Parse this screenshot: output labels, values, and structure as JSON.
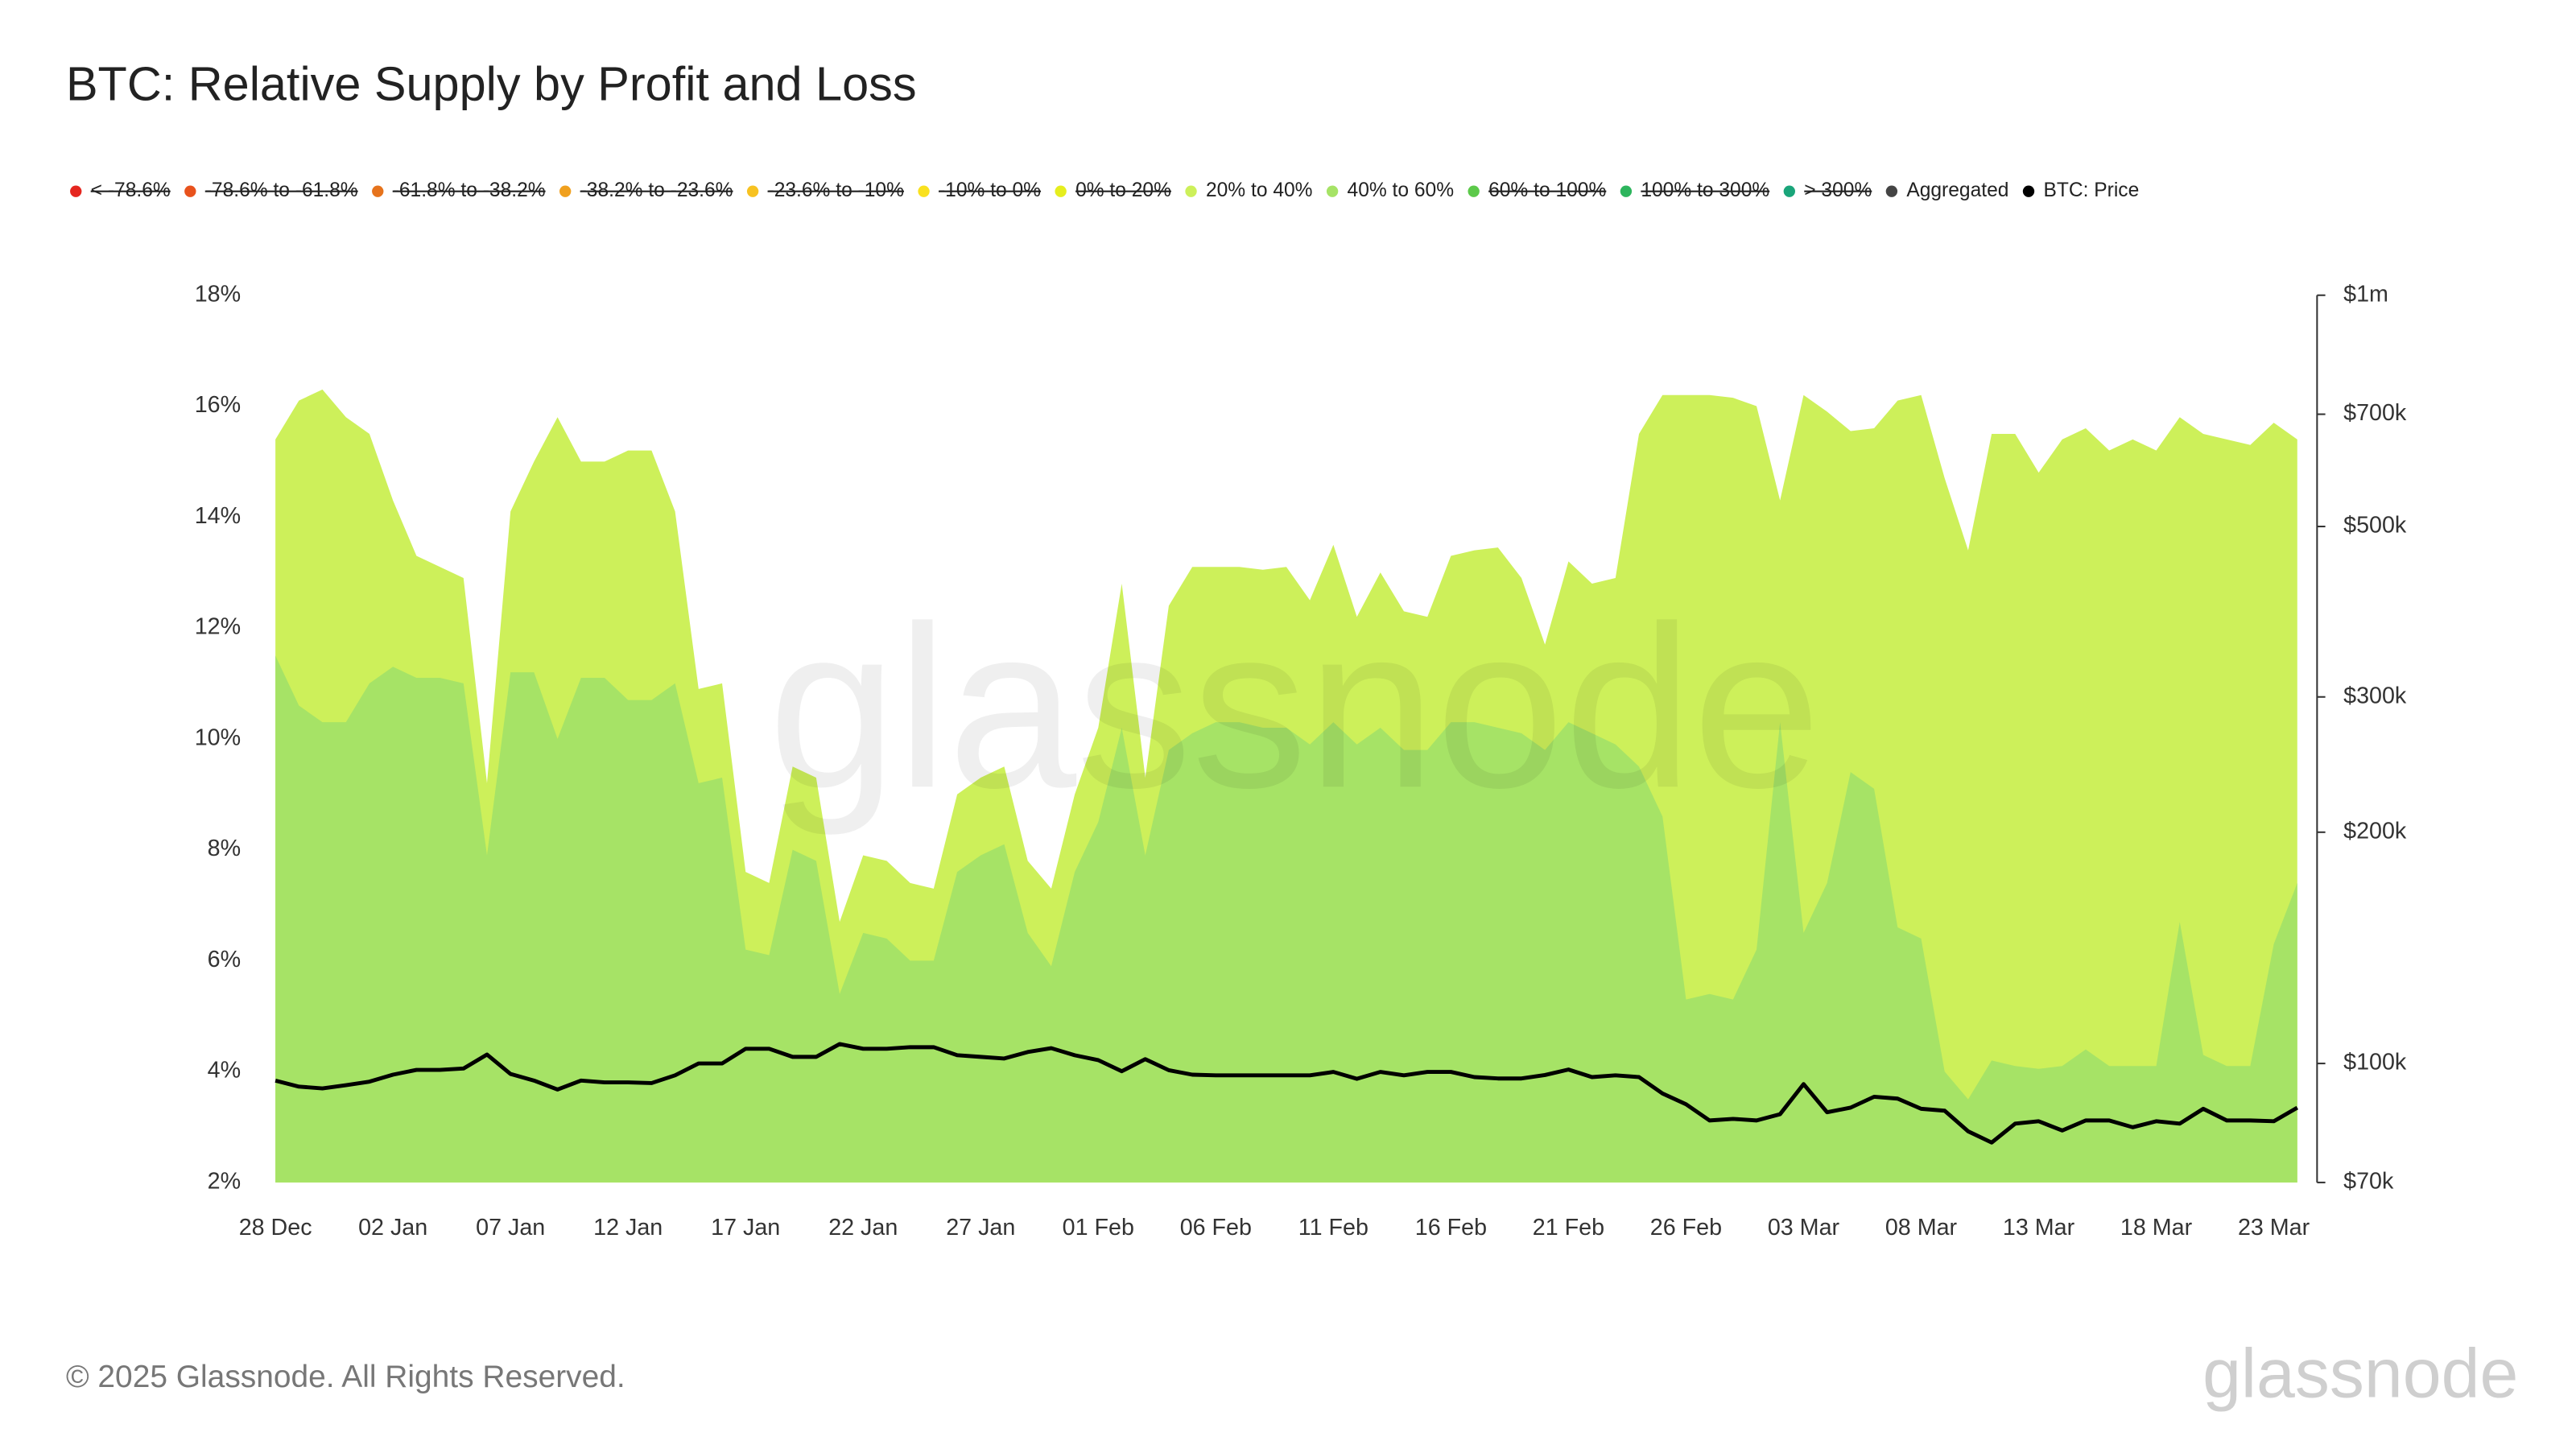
{
  "chart_data": {
    "type": "area",
    "title": "BTC: Relative Supply by Profit and Loss",
    "footer": "© 2025 Glassnode. All Rights Reserved.",
    "watermark": "glassnode",
    "categories": [
      "28 Dec",
      null,
      null,
      null,
      null,
      "02 Jan",
      null,
      null,
      null,
      null,
      "07 Jan",
      null,
      null,
      null,
      null,
      "12 Jan",
      null,
      null,
      null,
      null,
      "17 Jan",
      null,
      null,
      null,
      null,
      "22 Jan",
      null,
      null,
      null,
      null,
      "27 Jan",
      null,
      null,
      null,
      null,
      "01 Feb",
      null,
      null,
      null,
      null,
      "06 Feb",
      null,
      null,
      null,
      null,
      "11 Feb",
      null,
      null,
      null,
      null,
      "16 Feb",
      null,
      null,
      null,
      null,
      "21 Feb",
      null,
      null,
      null,
      null,
      "26 Feb",
      null,
      null,
      null,
      null,
      "03 Mar",
      null,
      null,
      null,
      null,
      "08 Mar",
      null,
      null,
      null,
      null,
      "13 Mar",
      null,
      null,
      null,
      null,
      "18 Mar",
      null,
      null,
      null,
      null,
      "23 Mar",
      null
    ],
    "ylim": [
      2,
      18
    ],
    "yticks": [
      {
        "value": 2,
        "label": "2%"
      },
      {
        "value": 4,
        "label": "4%"
      },
      {
        "value": 6,
        "label": "6%"
      },
      {
        "value": 8,
        "label": "8%"
      },
      {
        "value": 10,
        "label": "10%"
      },
      {
        "value": 12,
        "label": "12%"
      },
      {
        "value": 14,
        "label": "14%"
      },
      {
        "value": 16,
        "label": "16%"
      },
      {
        "value": 18,
        "label": "18%"
      }
    ],
    "y2lim": [
      70000,
      1000000
    ],
    "y2log": true,
    "y2ticks": [
      {
        "value": 70000,
        "label": "$70k"
      },
      {
        "value": 100000,
        "label": "$100k"
      },
      {
        "value": 200000,
        "label": "$200k"
      },
      {
        "value": 300000,
        "label": "$300k"
      },
      {
        "value": 500000,
        "label": "$500k"
      },
      {
        "value": 700000,
        "label": "$700k"
      },
      {
        "value": 1000000,
        "label": "$1m"
      }
    ],
    "legend": "top",
    "series": [
      {
        "name": "< -78.6%",
        "color": "#e5261f",
        "visible": false
      },
      {
        "name": "-78.6% to -61.8%",
        "color": "#e8521d",
        "visible": false
      },
      {
        "name": "-61.8% to -38.2%",
        "color": "#e6731c",
        "visible": false
      },
      {
        "name": "-38.2% to -23.6%",
        "color": "#f0a01e",
        "visible": false
      },
      {
        "name": "-23.6% to -10%",
        "color": "#f7c221",
        "visible": false
      },
      {
        "name": "-10% to 0%",
        "color": "#f9e11f",
        "visible": false
      },
      {
        "name": "0% to 20%",
        "color": "#e6ee1e",
        "visible": false
      },
      {
        "name": "20% to 40%",
        "color": "#cdf05a",
        "visible": true,
        "values": [
          15.4,
          16.1,
          16.3,
          15.8,
          15.5,
          14.3,
          13.3,
          13.1,
          12.9,
          9.2,
          14.1,
          15.0,
          15.8,
          15.0,
          15.0,
          15.2,
          15.2,
          14.1,
          10.9,
          11.0,
          7.6,
          7.4,
          9.5,
          9.3,
          6.7,
          7.9,
          7.8,
          7.4,
          7.3,
          9.0,
          9.3,
          9.5,
          7.8,
          7.3,
          9.0,
          10.2,
          12.8,
          9.3,
          12.4,
          13.1,
          13.1,
          13.1,
          13.05,
          13.1,
          12.5,
          13.5,
          12.2,
          13.0,
          12.3,
          12.2,
          13.3,
          13.4,
          13.45,
          12.9,
          11.7,
          13.2,
          12.8,
          12.9,
          15.5,
          16.2,
          16.2,
          16.2,
          16.15,
          16.0,
          14.3,
          16.2,
          15.9,
          15.55,
          15.6,
          16.1,
          16.2,
          14.7,
          13.4,
          15.5,
          15.5,
          14.8,
          15.4,
          15.6,
          15.2,
          15.4,
          15.2,
          15.8,
          15.5,
          15.4,
          15.3,
          15.7,
          15.4
        ]
      },
      {
        "name": "40% to 60%",
        "color": "#a6e366",
        "visible": true,
        "values": [
          11.5,
          10.6,
          10.3,
          10.3,
          11.0,
          11.3,
          11.1,
          11.1,
          11.0,
          7.9,
          11.2,
          11.2,
          10.0,
          11.1,
          11.1,
          10.7,
          10.7,
          11.0,
          9.2,
          9.3,
          6.2,
          6.1,
          8.0,
          7.8,
          5.4,
          6.5,
          6.4,
          6.0,
          6.0,
          7.6,
          7.9,
          8.1,
          6.5,
          5.9,
          7.6,
          8.5,
          10.2,
          7.9,
          9.8,
          10.1,
          10.3,
          10.3,
          10.2,
          10.2,
          9.9,
          10.3,
          9.9,
          10.2,
          9.8,
          9.8,
          10.3,
          10.3,
          10.2,
          10.1,
          9.8,
          10.3,
          10.1,
          9.9,
          9.5,
          8.6,
          5.3,
          5.4,
          5.3,
          6.2,
          10.3,
          6.5,
          7.4,
          9.4,
          9.1,
          6.6,
          6.4,
          4.0,
          3.5,
          4.2,
          4.1,
          4.05,
          4.1,
          4.4,
          4.1,
          4.1,
          4.1,
          6.7,
          4.3,
          4.1,
          4.1,
          6.3,
          7.4
        ]
      },
      {
        "name": "60% to 100%",
        "color": "#5cc94a",
        "visible": false
      },
      {
        "name": "100% to 300%",
        "color": "#2db55d",
        "visible": false
      },
      {
        "name": "> 300%",
        "color": "#1aa57a",
        "visible": false
      },
      {
        "name": "Aggregated",
        "color": "#444444",
        "visible": true
      },
      {
        "name": "BTC: Price",
        "color": "#000000",
        "visible": true,
        "axis": "y2",
        "line": true,
        "values": [
          95000,
          93300,
          92800,
          93700,
          94700,
          96700,
          98100,
          98100,
          98500,
          102700,
          96900,
          95000,
          92500,
          95000,
          94500,
          94500,
          94300,
          96500,
          100000,
          100000,
          104500,
          104500,
          102000,
          102000,
          106000,
          104500,
          104500,
          105000,
          105000,
          102500,
          102000,
          101500,
          103500,
          104700,
          102500,
          101000,
          97700,
          101300,
          98000,
          96700,
          96500,
          96500,
          96500,
          96500,
          96500,
          97500,
          95500,
          97500,
          96500,
          97500,
          97500,
          96000,
          95600,
          95600,
          96600,
          98200,
          96000,
          96500,
          96000,
          91400,
          88500,
          84300,
          84700,
          84300,
          85900,
          94000,
          86400,
          87600,
          90500,
          90000,
          87300,
          86800,
          81600,
          78900,
          83500,
          84100,
          81800,
          84300,
          84300,
          82600,
          84100,
          83500,
          87300,
          84300,
          84300,
          84100,
          87600
        ]
      }
    ]
  }
}
